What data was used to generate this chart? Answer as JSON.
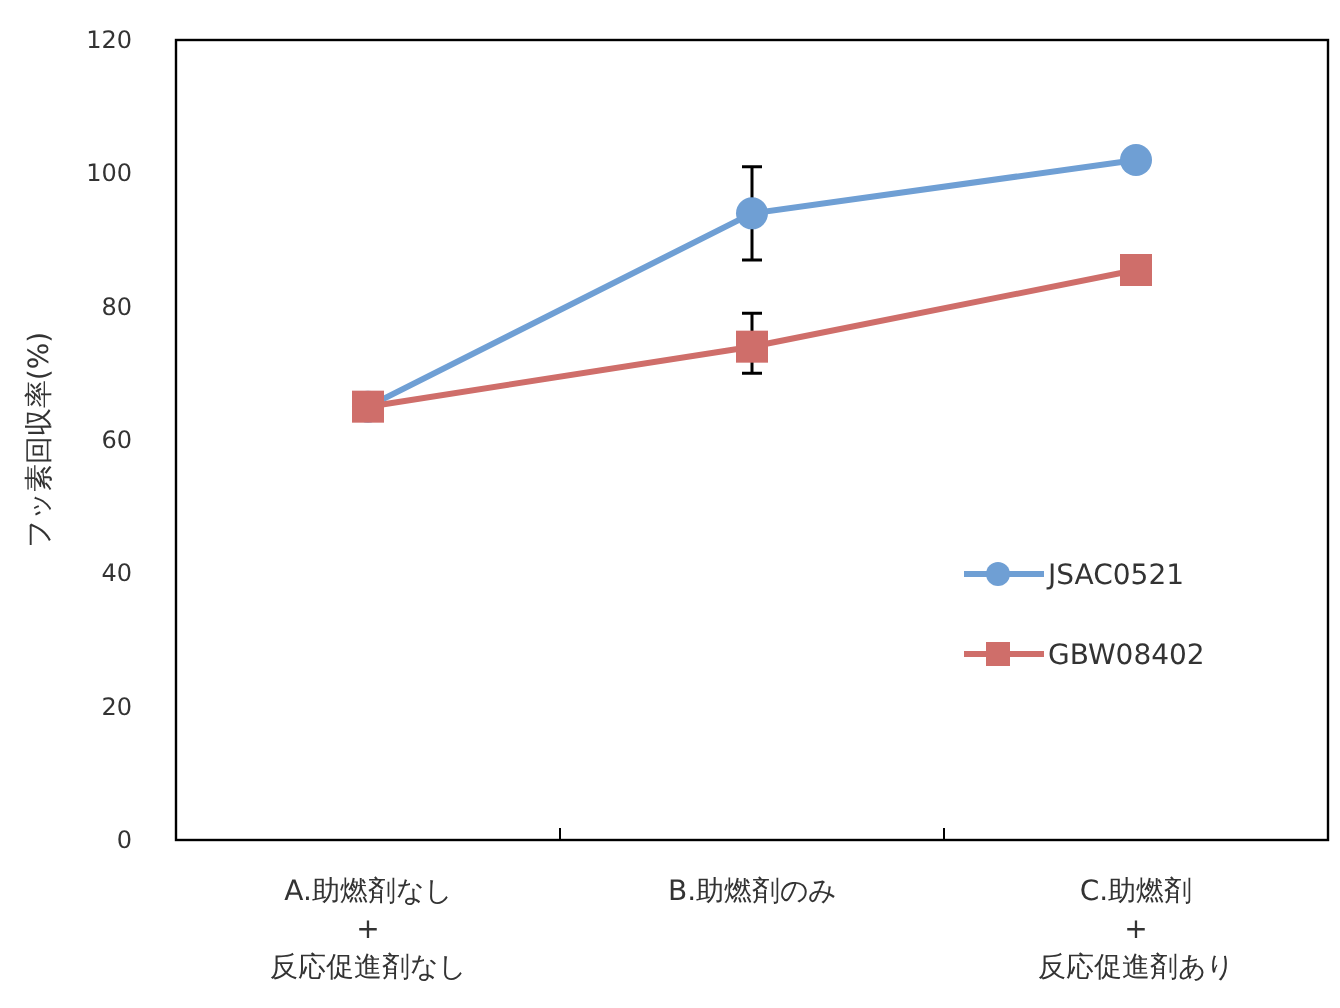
{
  "chart_data": {
    "type": "line",
    "ylabel": "フッ素回収率(%)",
    "categories": [
      "A.助燃剤なし\n+\n反応促進剤なし",
      "B.助燃剤のみ",
      "C.助燃剤\n+\n反応促進剤あり"
    ],
    "series": [
      {
        "name": "JSAC0521",
        "color": "#6f9fd4",
        "marker": "circle",
        "values": [
          65,
          94,
          102
        ],
        "errors": [
          null,
          [
            87,
            101
          ],
          null
        ]
      },
      {
        "name": "GBW08402",
        "color": "#cf6e6a",
        "marker": "square",
        "values": [
          65,
          74,
          85.5
        ],
        "errors": [
          null,
          [
            70,
            79
          ],
          null
        ]
      }
    ],
    "ylim": [
      0,
      120
    ],
    "yticks": [
      0,
      20,
      40,
      60,
      80,
      100,
      120
    ],
    "grid": false,
    "legend": "right"
  }
}
